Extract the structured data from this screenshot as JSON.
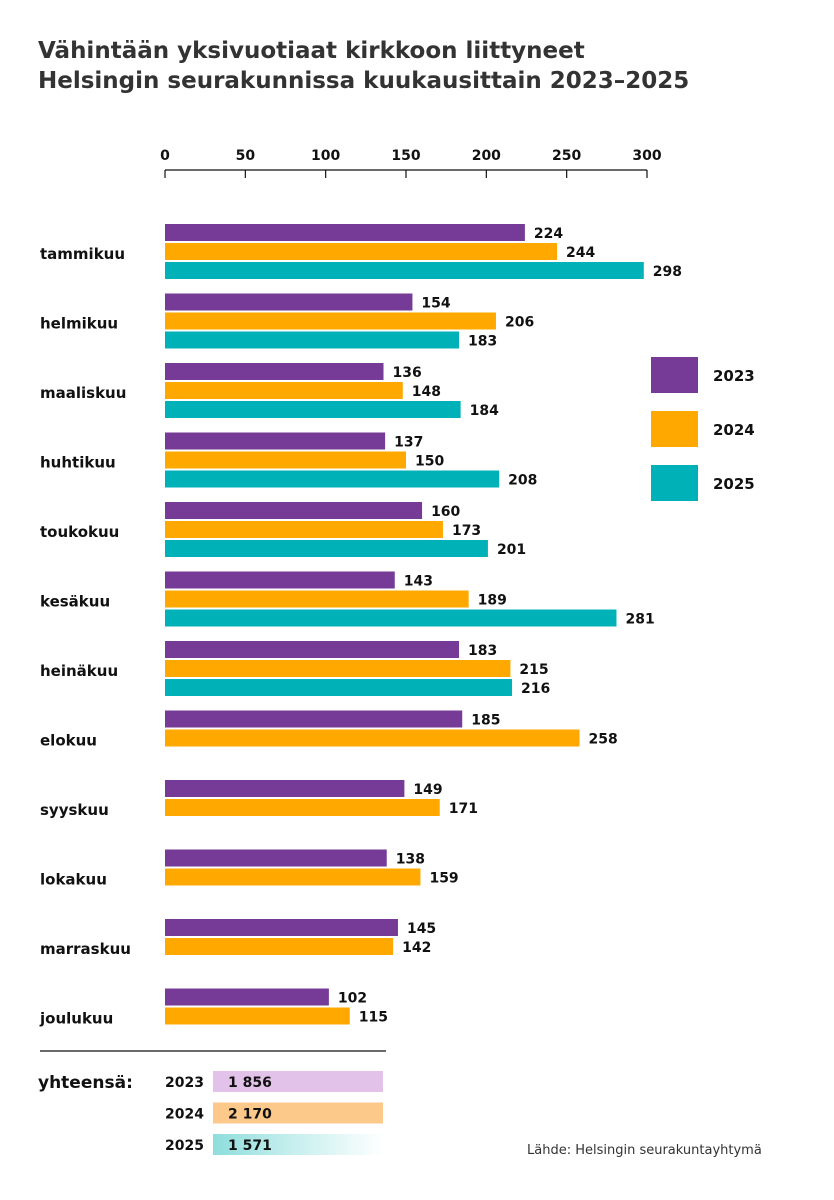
{
  "title": {
    "line1": "Vähintään yksivuotiaat kirkkoon liittyneet",
    "line2": "Helsingin seurakunnissa kuukausittain 2023–2025"
  },
  "source": "Lähde: Helsingin seurakuntayhtymä",
  "colors": {
    "2023": "#763a97",
    "2024": "#ffa800",
    "2025": "#00b2b8"
  },
  "chart_data": {
    "type": "bar",
    "orientation": "horizontal",
    "title": "Vähintään yksivuotiaat kirkkoon liittyneet Helsingin seurakunnissa kuukausittain 2023–2025",
    "xlabel": "",
    "ylabel": "",
    "xlim": [
      0,
      300
    ],
    "xticks": [
      0,
      50,
      100,
      150,
      200,
      250,
      300
    ],
    "axis_position": "top",
    "grid": false,
    "legend_position": "right",
    "categories": [
      "tammikuu",
      "helmikuu",
      "maaliskuu",
      "huhtikuu",
      "toukokuu",
      "kesäkuu",
      "heinäkuu",
      "elokuu",
      "syyskuu",
      "lokakuu",
      "marraskuu",
      "joulukuu"
    ],
    "series": [
      {
        "name": "2023",
        "color": "#763a97",
        "values": [
          224,
          154,
          136,
          137,
          160,
          143,
          183,
          185,
          149,
          138,
          145,
          102
        ]
      },
      {
        "name": "2024",
        "color": "#ffa800",
        "values": [
          244,
          206,
          148,
          150,
          173,
          189,
          215,
          258,
          171,
          159,
          142,
          115
        ]
      },
      {
        "name": "2025",
        "color": "#00b2b8",
        "values": [
          298,
          183,
          184,
          208,
          201,
          281,
          216,
          null,
          null,
          null,
          null,
          null
        ]
      }
    ],
    "totals": {
      "heading": "yhteensä:",
      "items": [
        {
          "year": "2023",
          "value": "1 856",
          "color": "#e2c2e9"
        },
        {
          "year": "2024",
          "value": "2 170",
          "color": "#fdc98a"
        },
        {
          "year": "2025",
          "value": "1 571",
          "color": "#8ddddc"
        }
      ]
    }
  }
}
